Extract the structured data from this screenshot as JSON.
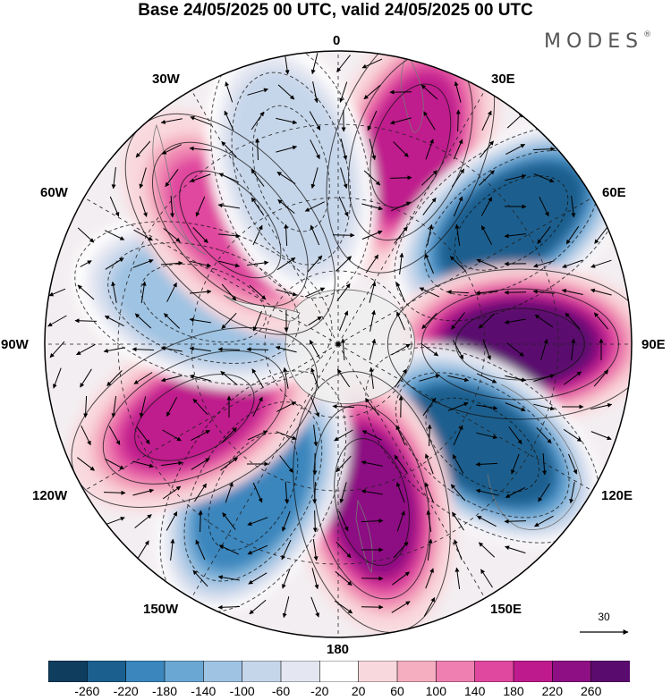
{
  "title": "Base 24/05/2025 00 UTC, valid 24/05/2025 00 UTC",
  "brand": "MODES",
  "brand_mark": "®",
  "longitude_labels": {
    "lon_0": "0",
    "lon_30E": "30E",
    "lon_60E": "60E",
    "lon_90E": "90E",
    "lon_120E": "120E",
    "lon_150E": "150E",
    "lon_180": "180",
    "lon_150W": "150W",
    "lon_120W": "120W",
    "lon_90W": "90W",
    "lon_60W": "60W",
    "lon_30W": "30W"
  },
  "reference_vector": {
    "value": "30"
  },
  "colorbar": {
    "colors": [
      "#0f3d5e",
      "#1a5f8e",
      "#3a86bd",
      "#6aa7d3",
      "#9fc3e2",
      "#c6d6ea",
      "#e4e6f1",
      "#ffffff",
      "#f9d8dd",
      "#f4aebf",
      "#ee7fb0",
      "#e0479f",
      "#bf1a8d",
      "#8d0f83",
      "#5a0b6e"
    ],
    "ticks": [
      "-260",
      "-220",
      "-180",
      "-140",
      "-100",
      "-60",
      "-20",
      "20",
      "60",
      "100",
      "140",
      "180",
      "220",
      "260"
    ]
  },
  "anomaly_centers": [
    {
      "name": "north-positive",
      "lon_deg": 20,
      "colat_frac": 0.72,
      "value": 180
    },
    {
      "name": "ne-negative",
      "lon_deg": 55,
      "colat_frac": 0.72,
      "value": -260
    },
    {
      "name": "east-positive",
      "lon_deg": 90,
      "colat_frac": 0.62,
      "value": 260
    },
    {
      "name": "se-negative",
      "lon_deg": 125,
      "colat_frac": 0.6,
      "value": -260
    },
    {
      "name": "south-positive",
      "lon_deg": 168,
      "colat_frac": 0.55,
      "value": 220
    },
    {
      "name": "sw-negative",
      "lon_deg": 210,
      "colat_frac": 0.58,
      "value": -220
    },
    {
      "name": "west-positive",
      "lon_deg": 243,
      "colat_frac": 0.55,
      "value": 200
    },
    {
      "name": "wnw-negative",
      "lon_deg": 287,
      "colat_frac": 0.48,
      "value": -140
    },
    {
      "name": "nw-positive",
      "lon_deg": 318,
      "colat_frac": 0.55,
      "value": 140
    },
    {
      "name": "nnw-negative",
      "lon_deg": 345,
      "colat_frac": 0.62,
      "value": -100
    }
  ]
}
